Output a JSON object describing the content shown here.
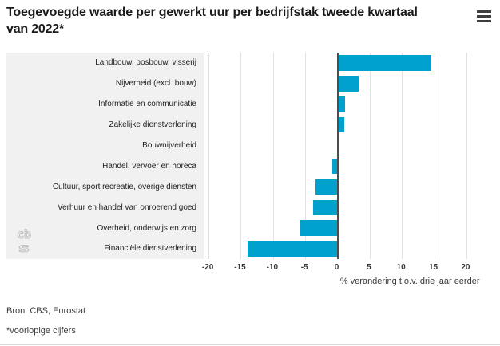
{
  "title": "Toegevoegde waarde per gewerkt uur per bedrijfstak tweede kwartaal van 2022*",
  "menu": {
    "icon": "hamburger-icon"
  },
  "chart_data": {
    "type": "bar",
    "orientation": "horizontal",
    "title": "Toegevoegde waarde per gewerkt uur per bedrijfstak tweede kwartaal van 2022*",
    "categories": [
      "Landbouw, bosbouw, visserij",
      "Nijverheid (excl. bouw)",
      "Informatie en communicatie",
      "Zakelijke dienstverlening",
      "Bouwnijverheid",
      "Handel, vervoer en horeca",
      "Cultuur, sport recreatie, overige diensten",
      "Verhuur en handel van onroerend goed",
      "Overheid, onderwijs en zorg",
      "Financiële dienstverlening"
    ],
    "values": [
      14.6,
      3.3,
      1.2,
      1.1,
      0,
      -0.8,
      -3.4,
      -3.8,
      -5.8,
      -14.0
    ],
    "xlabel": "% verandering t.o.v. drie jaar eerder",
    "xticks": [
      -20,
      -15,
      -10,
      -5,
      0,
      5,
      10,
      15,
      20
    ],
    "xlim": [
      -20.1,
      24.3
    ],
    "grid": true,
    "legend": false,
    "bar_color": "#00a1cd",
    "zero_line_color": "#4d4d4d",
    "label_panel_color": "#f1f1f1"
  },
  "footer": {
    "source": "Bron: CBS, Eurostat",
    "note": "*voorlopige cijfers"
  },
  "logo": {
    "name": "cbs-logo"
  }
}
